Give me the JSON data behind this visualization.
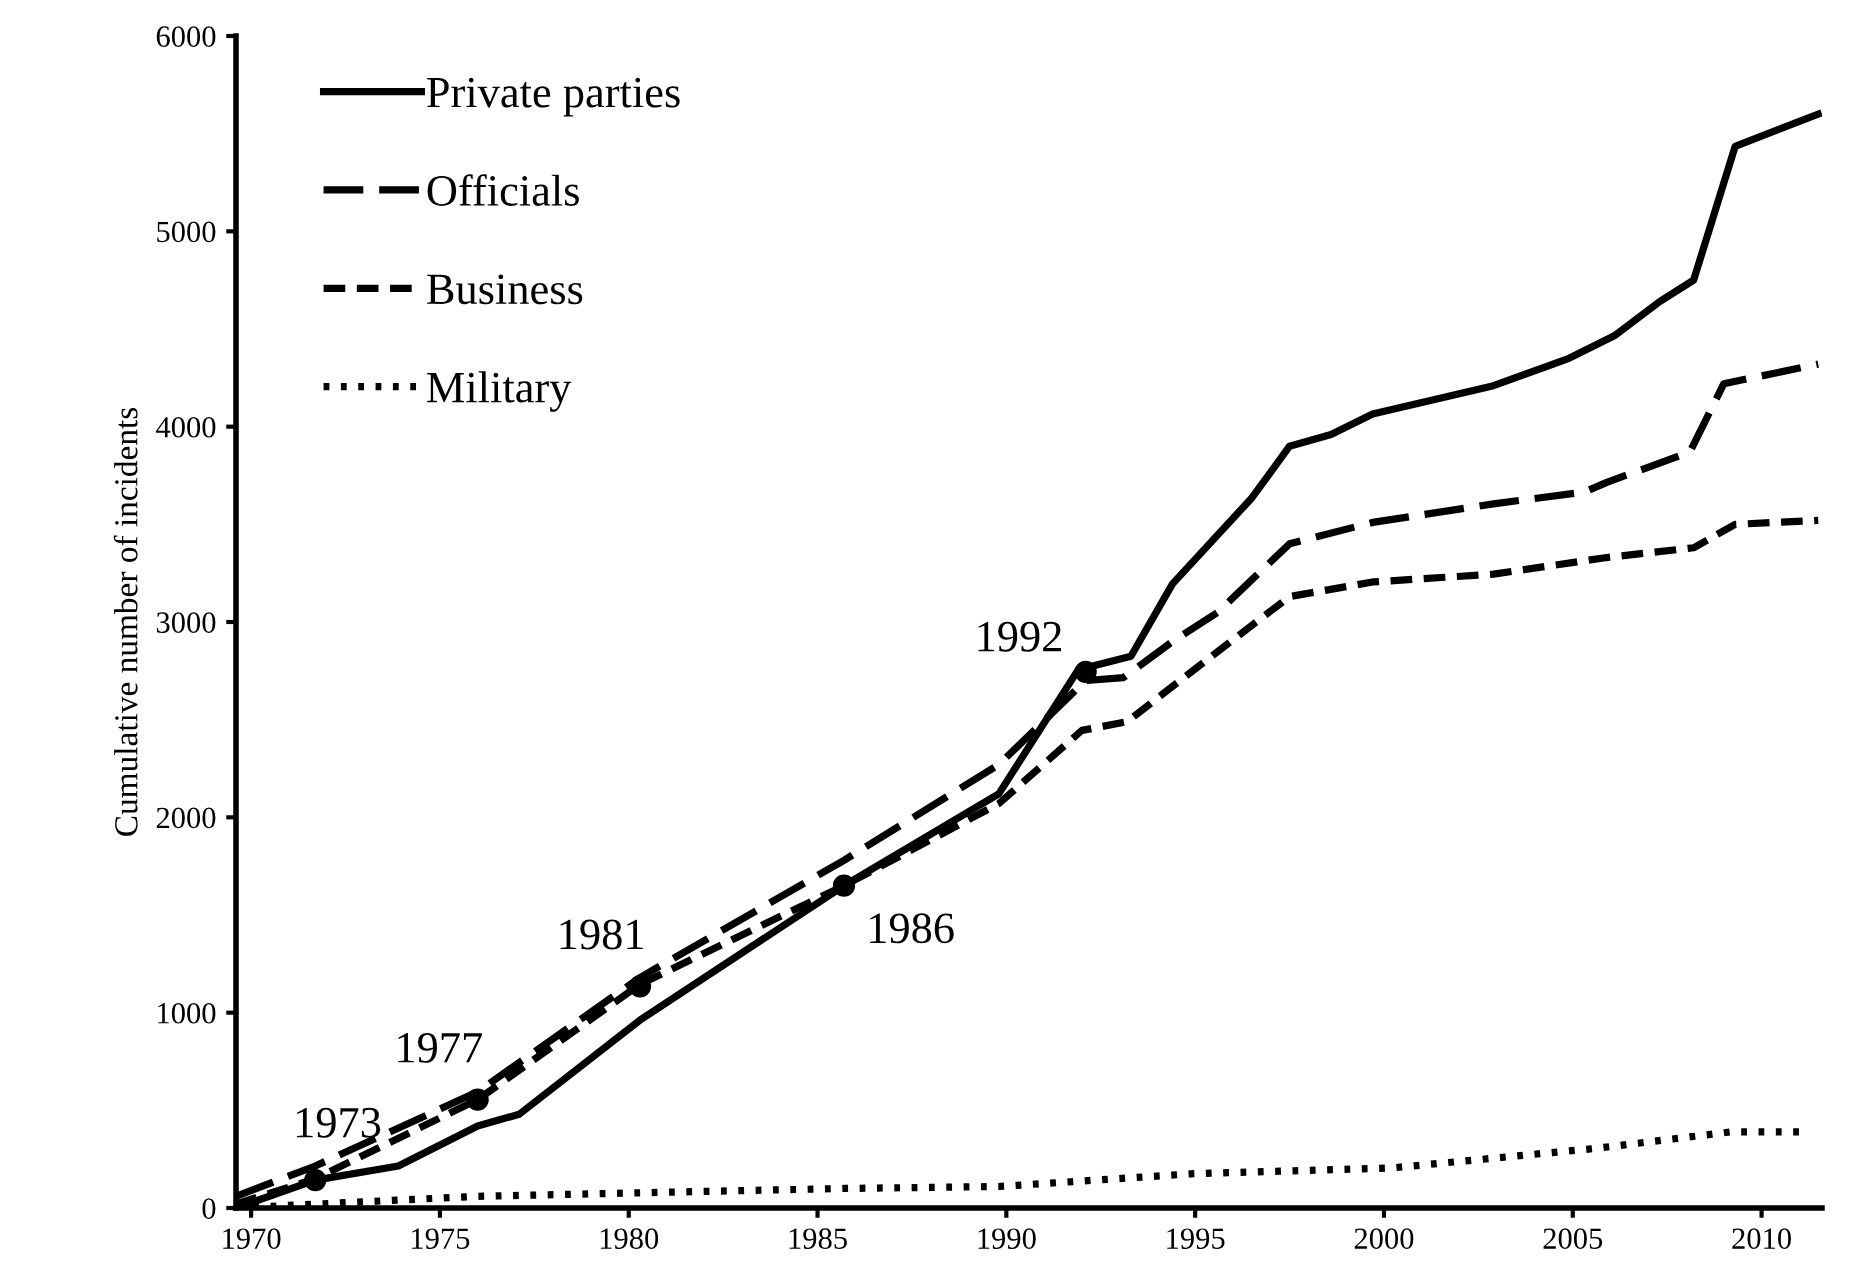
{
  "chart_data": {
    "type": "line",
    "ylabel": "Cumulative number of incidents",
    "xlim": [
      1969.6,
      2011.6
    ],
    "xticks": [
      1970,
      1975,
      1980,
      1985,
      1990,
      1995,
      2000,
      2005,
      2010
    ],
    "ylim": [
      0,
      6000
    ],
    "yticks": [
      0,
      1000,
      2000,
      3000,
      4000,
      5000,
      6000
    ],
    "grid": false,
    "legend": "top left",
    "marker": "none",
    "series": [
      {
        "name": "Private parties",
        "color": "#000000",
        "line_style": "solid",
        "x": [
          1969.6,
          1971.7,
          1973.9,
          1976.0,
          1977.1,
          1980.3,
          1985.7,
          1989.8,
          1991.9,
          1993.3,
          1994.4,
          1996.5,
          1997.5,
          1998.6,
          1999.7,
          2002.9,
          2004.9,
          2006.1,
          2007.3,
          2008.2,
          2009.3,
          2011.5
        ],
        "values": [
          0,
          143,
          215,
          420,
          480,
          962,
          1650,
          2120,
          2755,
          2825,
          3195,
          3635,
          3900,
          3960,
          4065,
          4210,
          4350,
          4465,
          4640,
          4750,
          5435,
          5600
        ]
      },
      {
        "name": "Officials",
        "color": "#000000",
        "line_style": "longdash",
        "x": [
          1969.6,
          1971.7,
          1976.0,
          1980.3,
          1985.7,
          1989.8,
          1992.1,
          1993.1,
          1994.4,
          1995.6,
          1997.5,
          1999.7,
          2002.9,
          2005.3,
          2005.9,
          2008.1,
          2009.0,
          2011.5
        ],
        "values": [
          60,
          215,
          595,
          1180,
          1780,
          2270,
          2700,
          2715,
          2900,
          3050,
          3400,
          3510,
          3605,
          3665,
          3715,
          3870,
          4220,
          4320
        ]
      },
      {
        "name": "Business",
        "color": "#000000",
        "line_style": "dashed",
        "x": [
          1969.6,
          1971.7,
          1976.0,
          1980.3,
          1985.7,
          1989.8,
          1992.0,
          1993.2,
          1995.3,
          1997.5,
          1999.7,
          2002.9,
          2005.9,
          2008.2,
          2009.3,
          2011.5
        ],
        "values": [
          20,
          150,
          555,
          1145,
          1650,
          2070,
          2445,
          2490,
          2805,
          3130,
          3205,
          3245,
          3330,
          3380,
          3500,
          3520
        ]
      },
      {
        "name": "Military",
        "color": "#000000",
        "line_style": "dotted",
        "x": [
          1969.6,
          1976.0,
          1985.7,
          1989.8,
          1994.9,
          2000.2,
          2005.6,
          2009.2,
          2011.1
        ],
        "values": [
          0,
          60,
          100,
          110,
          175,
          205,
          305,
          390,
          390
        ]
      }
    ],
    "annotations": [
      {
        "text": "1973",
        "x": 1971.7,
        "y": 143
      },
      {
        "text": "1977",
        "x": 1976.0,
        "y": 555
      },
      {
        "text": "1981",
        "x": 1980.3,
        "y": 1135
      },
      {
        "text": "1986",
        "x": 1985.7,
        "y": 1650
      },
      {
        "text": "1992",
        "x": 1992.1,
        "y": 2745
      }
    ]
  }
}
